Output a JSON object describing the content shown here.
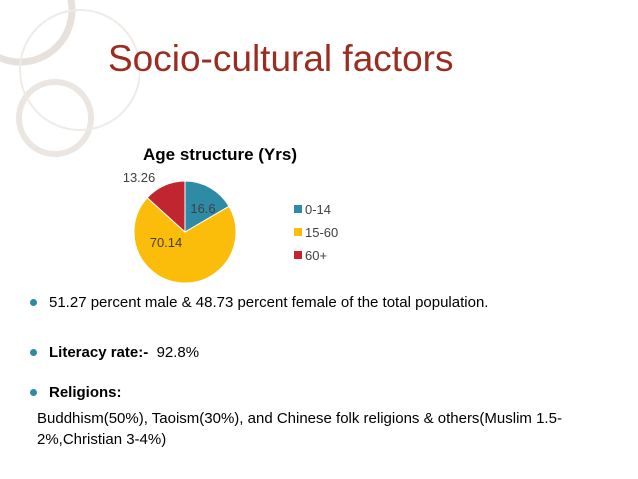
{
  "slide": {
    "title": "Socio-cultural factors",
    "accent_color": "#9b2d20",
    "bullet_color": "#2f8aa6"
  },
  "chart_data": {
    "type": "pie",
    "title": "Age structure (Yrs)",
    "categories": [
      "0-14",
      "15-60",
      "60+"
    ],
    "values": [
      16.6,
      70.14,
      13.26
    ],
    "value_labels": [
      "16.6",
      "70.14",
      "13.26"
    ],
    "colors": [
      "#2e8ba6",
      "#fbbc0a",
      "#c12530"
    ],
    "legend_position": "right"
  },
  "bullets": {
    "item1": "51.27 percent male & 48.73 percent female of the total population.",
    "item2_label": "Literacy rate:-",
    "item2_value": "92.8%",
    "item3_label": "Religions:",
    "religions_text": "Buddhism(50%), Taoism(30%), and Chinese folk religions & others(Muslim 1.5-2%,Christian 3-4%)"
  }
}
